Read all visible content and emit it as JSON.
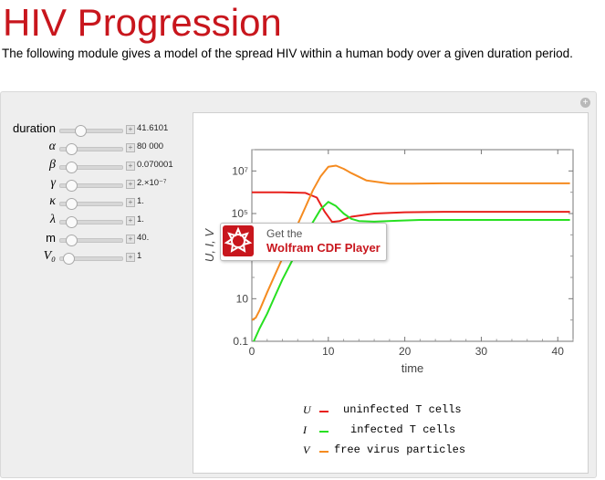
{
  "page": {
    "title": "HIV Progression",
    "description": "The following module gives a model of the spread HIV within a human body over a given duration period."
  },
  "controls": [
    {
      "label": "duration",
      "italic": false,
      "value": "41.6101",
      "knob": 0.25
    },
    {
      "label": "α",
      "italic": true,
      "value": "80 000",
      "knob": 0.1
    },
    {
      "label": "β",
      "italic": true,
      "value": "0.070001",
      "knob": 0.1
    },
    {
      "label": "γ",
      "italic": true,
      "value": "2.×10⁻⁷",
      "knob": 0.1
    },
    {
      "label": "κ",
      "italic": true,
      "value": "1.",
      "knob": 0.1
    },
    {
      "label": "λ",
      "italic": true,
      "value": "1.",
      "knob": 0.1
    },
    {
      "label": "m",
      "italic": false,
      "value": "40.",
      "knob": 0.1
    },
    {
      "label": "V₀",
      "italic": true,
      "value": "1",
      "knob": 0.05
    }
  ],
  "cdf_player": {
    "line1": "Get the",
    "line2": "Wolfram CDF Player"
  },
  "legend": [
    {
      "symbol": "U",
      "text": "uninfected T cells",
      "color": "#e8201c"
    },
    {
      "symbol": "I",
      "text": "infected T cells",
      "color": "#27e021"
    },
    {
      "symbol": "V",
      "text": "free virus particles",
      "color": "#f58b20"
    }
  ],
  "colors": {
    "title": "#c8161d",
    "U": "#e8201c",
    "I": "#27e021",
    "V": "#f58b20"
  },
  "chart_data": {
    "type": "line",
    "xlabel": "time",
    "ylabel": "U, I, V",
    "xlim": [
      0,
      42
    ],
    "ylim_log10": [
      -1,
      8
    ],
    "y_scale": "log",
    "x_ticks": [
      "0",
      "10",
      "20",
      "30",
      "40"
    ],
    "y_ticks": [
      "0.1",
      "10",
      "10⁵",
      "10⁷"
    ],
    "series": [
      {
        "name": "U",
        "x": [
          0,
          4,
          7,
          8.5,
          9.5,
          10.5,
          11.5,
          13,
          16,
          20,
          25,
          30,
          35,
          41.6
        ],
        "log10": [
          6.0,
          6.0,
          5.97,
          5.75,
          5.1,
          4.6,
          4.65,
          4.85,
          5.0,
          5.06,
          5.08,
          5.08,
          5.08,
          5.08
        ]
      },
      {
        "name": "I",
        "x": [
          0,
          1,
          2,
          3,
          4,
          5,
          6,
          7,
          8,
          9,
          10,
          11,
          12,
          13,
          14,
          16,
          19,
          22,
          25,
          30,
          35,
          41.6
        ],
        "log10": [
          -1.2,
          -0.4,
          0.3,
          1.1,
          1.9,
          2.6,
          3.3,
          4.0,
          4.6,
          5.2,
          5.55,
          5.35,
          5.0,
          4.75,
          4.65,
          4.62,
          4.66,
          4.7,
          4.7,
          4.7,
          4.7,
          4.7
        ]
      },
      {
        "name": "V",
        "x": [
          0,
          0.5,
          1,
          2,
          3,
          4,
          5,
          6,
          7,
          8,
          9,
          10,
          11,
          12,
          13,
          15,
          18,
          21,
          25,
          30,
          35,
          41.6
        ],
        "log10": [
          0.0,
          0.1,
          0.45,
          1.3,
          2.1,
          2.9,
          3.7,
          4.5,
          5.3,
          6.1,
          6.75,
          7.2,
          7.25,
          7.1,
          6.9,
          6.55,
          6.4,
          6.4,
          6.42,
          6.42,
          6.42,
          6.42
        ]
      }
    ]
  }
}
